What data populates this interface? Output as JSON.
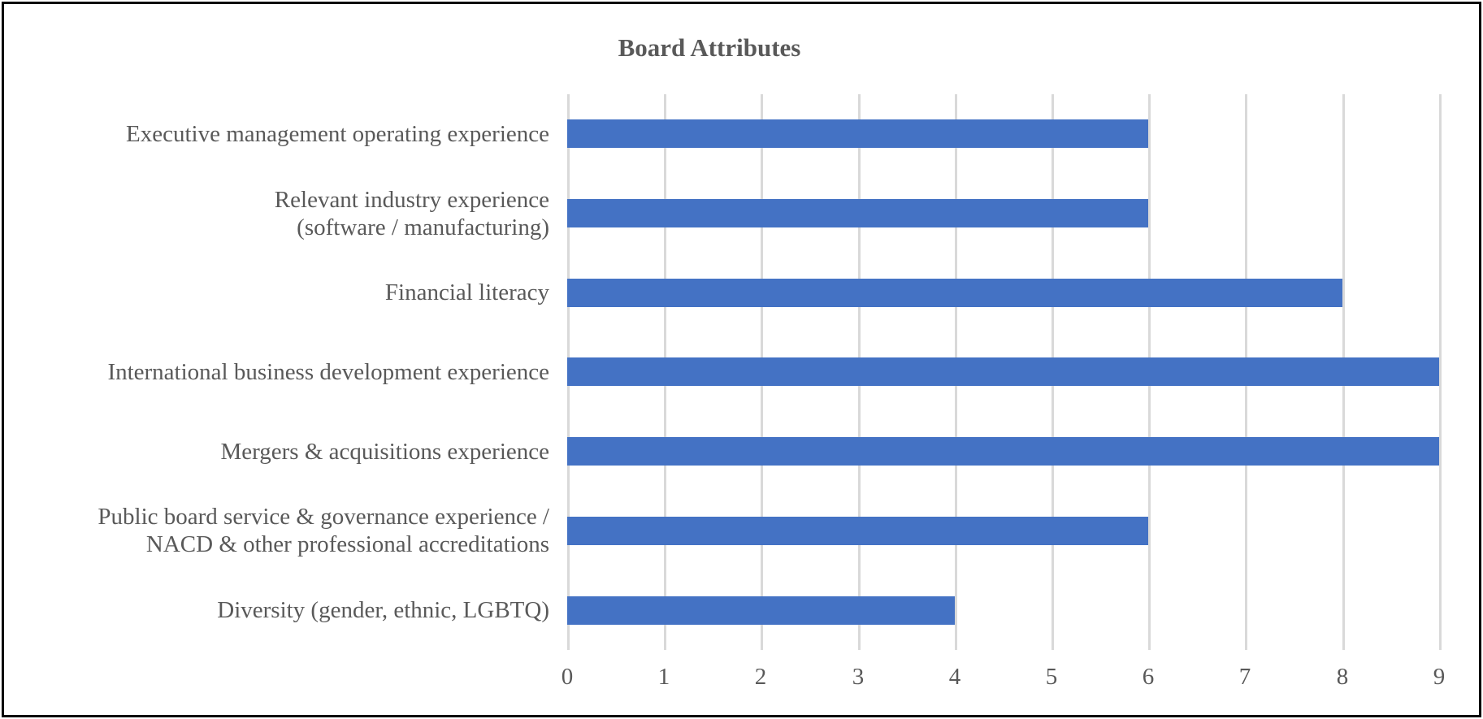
{
  "chart_data": {
    "type": "bar",
    "orientation": "horizontal",
    "title": "Board Attributes",
    "categories": [
      "Executive management operating experience",
      "Relevant industry experience (software / manufacturing)",
      "Financial literacy",
      "International business development experience",
      "Mergers & acquisitions experience",
      "Public board service & governance experience / NACD & other professional accreditations",
      "Diversity (gender, ethnic, LGBTQ)"
    ],
    "category_lines": [
      [
        "Executive management operating experience"
      ],
      [
        "Relevant industry experience",
        "(software / manufacturing)"
      ],
      [
        "Financial literacy"
      ],
      [
        "International business development experience"
      ],
      [
        "Mergers & acquisitions experience"
      ],
      [
        "Public board service & governance experience /",
        "NACD & other professional accreditations"
      ],
      [
        "Diversity (gender, ethnic, LGBTQ)"
      ]
    ],
    "values": [
      6,
      6,
      8,
      9,
      9,
      6,
      4
    ],
    "xlabel": "",
    "ylabel": "",
    "xlim": [
      0,
      9
    ],
    "xticks": [
      "0",
      "1",
      "2",
      "3",
      "4",
      "5",
      "6",
      "7",
      "8",
      "9"
    ],
    "grid": "vertical-only",
    "legend": "none",
    "colors": {
      "bar": "#4472C4",
      "gridline": "#D9D9D9",
      "text": "#595959",
      "frame_border": "#000000",
      "background": "#FFFFFF"
    }
  }
}
